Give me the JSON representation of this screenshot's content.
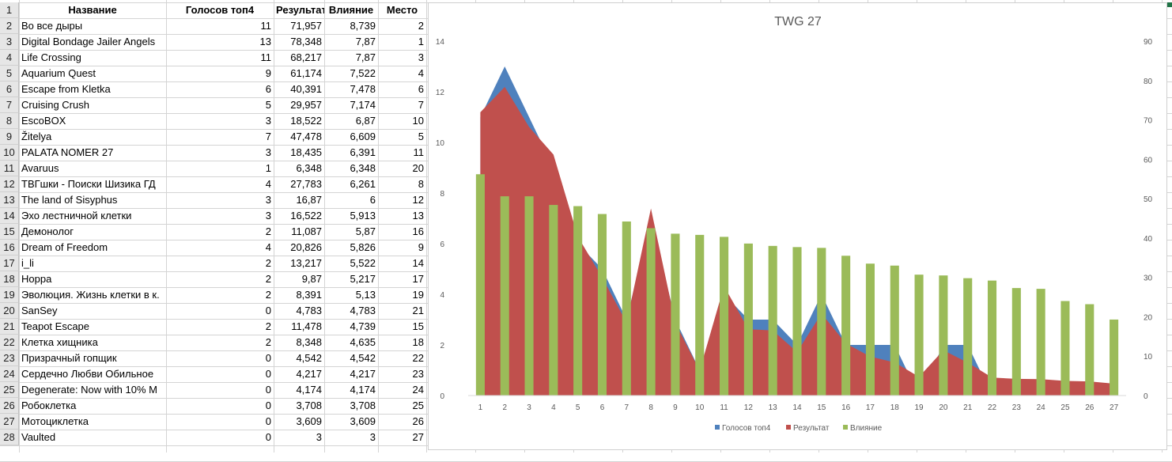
{
  "table": {
    "headers": [
      "Название",
      "Голосов топ4",
      "Результат",
      "Влияние",
      "Место"
    ],
    "rows": [
      {
        "n": "2",
        "name": "Во все дыры",
        "votes": "11",
        "result": "71,957",
        "influence": "8,739",
        "place": "2"
      },
      {
        "n": "3",
        "name": "Digital Bondage Jailer Angels",
        "votes": "13",
        "result": "78,348",
        "influence": "7,87",
        "place": "1"
      },
      {
        "n": "4",
        "name": "Life Crossing",
        "votes": "11",
        "result": "68,217",
        "influence": "7,87",
        "place": "3"
      },
      {
        "n": "5",
        "name": "Aquarium Quest",
        "votes": "9",
        "result": "61,174",
        "influence": "7,522",
        "place": "4"
      },
      {
        "n": "6",
        "name": "Escape from Kletka",
        "votes": "6",
        "result": "40,391",
        "influence": "7,478",
        "place": "6"
      },
      {
        "n": "7",
        "name": "Cruising Crush",
        "votes": "5",
        "result": "29,957",
        "influence": "7,174",
        "place": "7"
      },
      {
        "n": "8",
        "name": "EscoBOX",
        "votes": "3",
        "result": "18,522",
        "influence": "6,87",
        "place": "10"
      },
      {
        "n": "9",
        "name": "Žitelya",
        "votes": "7",
        "result": "47,478",
        "influence": "6,609",
        "place": "5"
      },
      {
        "n": "10",
        "name": "PALATA NOMER 27",
        "votes": "3",
        "result": "18,435",
        "influence": "6,391",
        "place": "11"
      },
      {
        "n": "11",
        "name": "Avaruus",
        "votes": "1",
        "result": "6,348",
        "influence": "6,348",
        "place": "20"
      },
      {
        "n": "12",
        "name": "ТВГшки - Поиски Шизика ГД",
        "votes": "4",
        "result": "27,783",
        "influence": "6,261",
        "place": "8"
      },
      {
        "n": "13",
        "name": "The land of Sisyphus",
        "votes": "3",
        "result": "16,87",
        "influence": "6",
        "place": "12"
      },
      {
        "n": "14",
        "name": "Эхо лестничной клетки",
        "votes": "3",
        "result": "16,522",
        "influence": "5,913",
        "place": "13"
      },
      {
        "n": "15",
        "name": "Демонолог",
        "votes": "2",
        "result": "11,087",
        "influence": "5,87",
        "place": "16"
      },
      {
        "n": "16",
        "name": "Dream of Freedom",
        "votes": "4",
        "result": "20,826",
        "influence": "5,826",
        "place": "9"
      },
      {
        "n": "17",
        "name": "i_li",
        "votes": "2",
        "result": "13,217",
        "influence": "5,522",
        "place": "14"
      },
      {
        "n": "18",
        "name": "Hoppa",
        "votes": "2",
        "result": "9,87",
        "influence": "5,217",
        "place": "17"
      },
      {
        "n": "19",
        "name": "Эволюция. Жизнь клетки в к.",
        "votes": "2",
        "result": "8,391",
        "influence": "5,13",
        "place": "19"
      },
      {
        "n": "20",
        "name": "SanSey",
        "votes": "0",
        "result": "4,783",
        "influence": "4,783",
        "place": "21"
      },
      {
        "n": "21",
        "name": "Teapot Escape",
        "votes": "2",
        "result": "11,478",
        "influence": "4,739",
        "place": "15"
      },
      {
        "n": "22",
        "name": "Клетка хищника",
        "votes": "2",
        "result": "8,348",
        "influence": "4,635",
        "place": "18"
      },
      {
        "n": "23",
        "name": "Призрачный гопщик",
        "votes": "0",
        "result": "4,542",
        "influence": "4,542",
        "place": "22"
      },
      {
        "n": "24",
        "name": "Сердечно Любви Обильное",
        "votes": "0",
        "result": "4,217",
        "influence": "4,217",
        "place": "23"
      },
      {
        "n": "25",
        "name": "Degenerate: Now with 10% M",
        "votes": "0",
        "result": "4,174",
        "influence": "4,174",
        "place": "24"
      },
      {
        "n": "26",
        "name": "Робоклетка",
        "votes": "0",
        "result": "3,708",
        "influence": "3,708",
        "place": "25"
      },
      {
        "n": "27",
        "name": "Мотоциклетка",
        "votes": "0",
        "result": "3,609",
        "influence": "3,609",
        "place": "26"
      },
      {
        "n": "28",
        "name": "Vaulted",
        "votes": "0",
        "result": "3",
        "influence": "3",
        "place": "27"
      }
    ]
  },
  "header_row_number": "1",
  "chart_data": {
    "type": "area",
    "title": "TWG 27",
    "x": [
      "1",
      "2",
      "3",
      "4",
      "5",
      "6",
      "7",
      "8",
      "9",
      "10",
      "11",
      "12",
      "13",
      "14",
      "15",
      "16",
      "17",
      "18",
      "19",
      "20",
      "21",
      "22",
      "23",
      "24",
      "25",
      "26",
      "27"
    ],
    "y_left_ticks": [
      "0",
      "2",
      "4",
      "6",
      "8",
      "10",
      "12",
      "14"
    ],
    "y_right_ticks": [
      "0",
      "10",
      "20",
      "30",
      "40",
      "50",
      "60",
      "70",
      "80",
      "90"
    ],
    "y_left_range": [
      0,
      14
    ],
    "y_right_range": [
      0,
      90
    ],
    "series": [
      {
        "name": "Голосов топ4",
        "kind": "area",
        "axis": "left",
        "color": "#4f81bd",
        "values": [
          11,
          13,
          11,
          9,
          6,
          5,
          3,
          7,
          3,
          1,
          4,
          3,
          3,
          2,
          4,
          2,
          2,
          2,
          0,
          2,
          2,
          0,
          0,
          0,
          0,
          0,
          0
        ]
      },
      {
        "name": "Результат",
        "kind": "area",
        "axis": "left",
        "color": "#c0504d",
        "values": [
          11.19,
          12.19,
          10.61,
          9.52,
          6.28,
          4.66,
          2.88,
          7.39,
          2.87,
          0.99,
          4.32,
          2.62,
          2.57,
          1.72,
          3.24,
          2.06,
          1.54,
          1.31,
          0.74,
          1.79,
          1.3,
          0.71,
          0.66,
          0.65,
          0.58,
          0.56,
          0.47
        ]
      },
      {
        "name": "Влияние",
        "kind": "bar",
        "axis": "right",
        "color": "#9bbb59",
        "values": [
          56.2,
          50.6,
          50.6,
          48.4,
          48.1,
          46.1,
          44.2,
          42.5,
          41.1,
          40.8,
          40.3,
          38.6,
          38.0,
          37.7,
          37.5,
          35.5,
          33.5,
          33.0,
          30.7,
          30.5,
          29.8,
          29.2,
          27.3,
          27.1,
          24.0,
          23.2,
          19.3
        ]
      }
    ],
    "legend_position": "bottom",
    "grid": false
  }
}
